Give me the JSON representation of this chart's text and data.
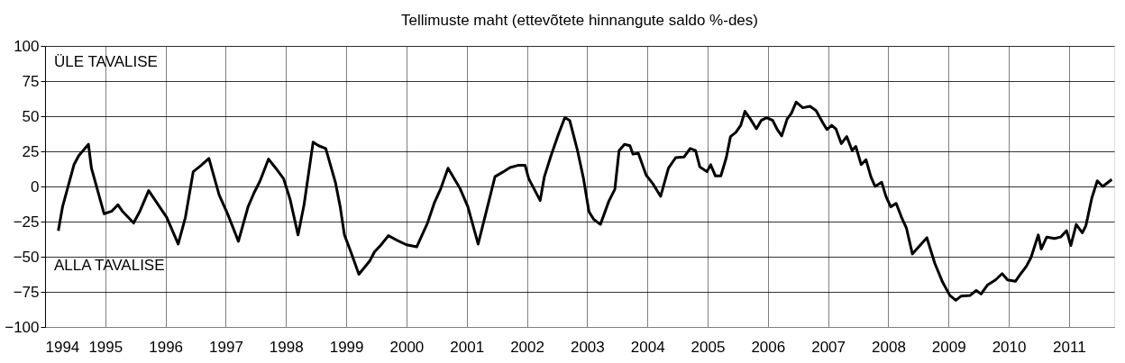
{
  "chart_data": {
    "type": "line",
    "title": "Tellimuste maht (ettevõtete hinnangute saldo %-des)",
    "annotations": [
      "ÜLE TAVALISE",
      "ALLA TAVALISE"
    ],
    "xlim": [
      1994,
      2011.75
    ],
    "xticks": [
      1994,
      1995,
      1996,
      1997,
      1998,
      1999,
      2000,
      2001,
      2002,
      2003,
      2004,
      2005,
      2006,
      2007,
      2008,
      2009,
      2010,
      2011
    ],
    "ylim": [
      -100,
      100
    ],
    "yticks": [
      -100,
      -75,
      -50,
      -25,
      0,
      25,
      50,
      75,
      100
    ],
    "grid": true,
    "marker": "none",
    "line_style": "solid",
    "series": [
      {
        "color": "#000000",
        "x": [
          1994.22,
          1994.29,
          1994.48,
          1994.56,
          1994.72,
          1994.77,
          1994.98,
          1995.11,
          1995.21,
          1995.29,
          1995.47,
          1995.57,
          1995.72,
          1996.02,
          1996.21,
          1996.33,
          1996.46,
          1996.59,
          1996.72,
          1996.89,
          1997.03,
          1997.21,
          1997.37,
          1997.47,
          1997.57,
          1997.71,
          1997.83,
          1997.96,
          1998.07,
          1998.2,
          1998.3,
          1998.45,
          1998.54,
          1998.66,
          1998.82,
          1998.9,
          1998.97,
          1999.08,
          1999.21,
          1999.39,
          1999.47,
          1999.57,
          1999.7,
          1999.83,
          2000.0,
          2000.17,
          2000.35,
          2000.46,
          2000.57,
          2000.69,
          2000.89,
          2001.02,
          2001.19,
          2001.33,
          2001.47,
          2001.59,
          2001.72,
          2001.85,
          2001.97,
          2002.03,
          2002.22,
          2002.29,
          2002.4,
          2002.53,
          2002.63,
          2002.71,
          2002.84,
          2002.94,
          2003.03,
          2003.11,
          2003.22,
          2003.36,
          2003.46,
          2003.53,
          2003.62,
          2003.71,
          2003.76,
          2003.85,
          2003.98,
          2004.09,
          2004.22,
          2004.35,
          2004.47,
          2004.61,
          2004.71,
          2004.8,
          2004.87,
          2004.99,
          2005.05,
          2005.13,
          2005.22,
          2005.31,
          2005.38,
          2005.47,
          2005.55,
          2005.62,
          2005.71,
          2005.81,
          2005.89,
          2005.98,
          2006.08,
          2006.15,
          2006.23,
          2006.32,
          2006.39,
          2006.47,
          2006.58,
          2006.7,
          2006.8,
          2006.91,
          2006.98,
          2007.06,
          2007.13,
          2007.22,
          2007.31,
          2007.4,
          2007.46,
          2007.55,
          2007.63,
          2007.71,
          2007.78,
          2007.89,
          2007.96,
          2008.04,
          2008.13,
          2008.22,
          2008.3,
          2008.4,
          2008.64,
          2008.77,
          2008.9,
          2009.02,
          2009.12,
          2009.21,
          2009.36,
          2009.46,
          2009.54,
          2009.65,
          2009.78,
          2009.89,
          2009.98,
          2010.11,
          2010.2,
          2010.29,
          2010.37,
          2010.49,
          2010.54,
          2010.63,
          2010.76,
          2010.86,
          2010.96,
          2011.03,
          2011.12,
          2011.22,
          2011.28,
          2011.38,
          2011.47,
          2011.56,
          2011.71
        ],
        "values": [
          -31.5,
          -14.5,
          15.5,
          22,
          30,
          13,
          -19.5,
          -17.5,
          -13,
          -18,
          -26,
          -18,
          -3,
          -22,
          -41,
          -22,
          10.5,
          15,
          20,
          -6,
          -19.5,
          -39,
          -14.5,
          -4.5,
          4,
          19.5,
          13,
          5.5,
          -9.5,
          -34.5,
          -13,
          31.5,
          29,
          27,
          3,
          -14.5,
          -34.5,
          -47,
          -62.5,
          -53,
          -46.5,
          -42,
          -35,
          -38,
          -41.5,
          -43,
          -26,
          -12,
          -1.5,
          13,
          -1.5,
          -14.5,
          -41,
          -17,
          7,
          10,
          13.5,
          15,
          15,
          5.5,
          -10,
          7,
          22,
          38,
          49,
          47,
          25.5,
          5.5,
          -18,
          -23.5,
          -27,
          -10.5,
          -2,
          25.5,
          30,
          29,
          23,
          23.5,
          8,
          2,
          -7,
          13,
          20.5,
          21,
          27,
          25.5,
          14,
          10.5,
          15.5,
          7.5,
          7.5,
          20.5,
          35.5,
          38.5,
          43.5,
          53.5,
          48,
          41,
          47,
          49,
          47,
          41,
          36,
          48,
          52,
          60,
          56,
          57,
          54,
          45.5,
          40.5,
          43.5,
          41,
          30.5,
          35.5,
          25.5,
          28.5,
          15.5,
          19,
          7,
          0,
          3,
          -7,
          -14.5,
          -12,
          -22,
          -29.5,
          -48,
          -36.5,
          -54.5,
          -68,
          -77.5,
          -81,
          -78,
          -77.5,
          -74,
          -76.5,
          -70,
          -66.5,
          -62,
          -66.5,
          -67.5,
          -62,
          -57,
          -50.5,
          -34.5,
          -44.5,
          -36,
          -37,
          -36,
          -31.5,
          -42,
          -27,
          -33,
          -28,
          -8,
          4,
          0,
          5
        ]
      }
    ]
  }
}
